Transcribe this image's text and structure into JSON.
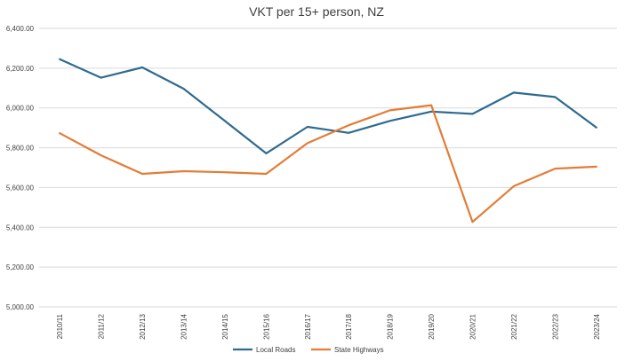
{
  "chart_data": {
    "type": "line",
    "title": "VKT per 15+ person, NZ",
    "xlabel": "",
    "ylabel": "",
    "categories": [
      "2010/11",
      "2011/12",
      "2012/13",
      "2013/14",
      "2014/15",
      "2015/16",
      "2016/17",
      "2017/18",
      "2018/19",
      "2019/20",
      "2020/21",
      "2021/22",
      "2022/23",
      "2023/24"
    ],
    "y_ticks": [
      "5,000.00",
      "5,200.00",
      "5,400.00",
      "5,600.00",
      "5,800.00",
      "6,000.00",
      "6,200.00",
      "6,400.00"
    ],
    "ylim": [
      5000,
      6400
    ],
    "grid": true,
    "legend_position": "bottom",
    "series": [
      {
        "name": "Local Roads",
        "color": "#2e6b8f",
        "values": [
          6245,
          6152,
          6204,
          6097,
          5935,
          5772,
          5905,
          5875,
          5935,
          5982,
          5970,
          6077,
          6055,
          5902
        ]
      },
      {
        "name": "State Highways",
        "color": "#e37c36",
        "values": [
          5873,
          5762,
          5669,
          5682,
          5677,
          5669,
          5823,
          5913,
          5988,
          6014,
          5427,
          5607,
          5695,
          5705
        ]
      }
    ]
  }
}
